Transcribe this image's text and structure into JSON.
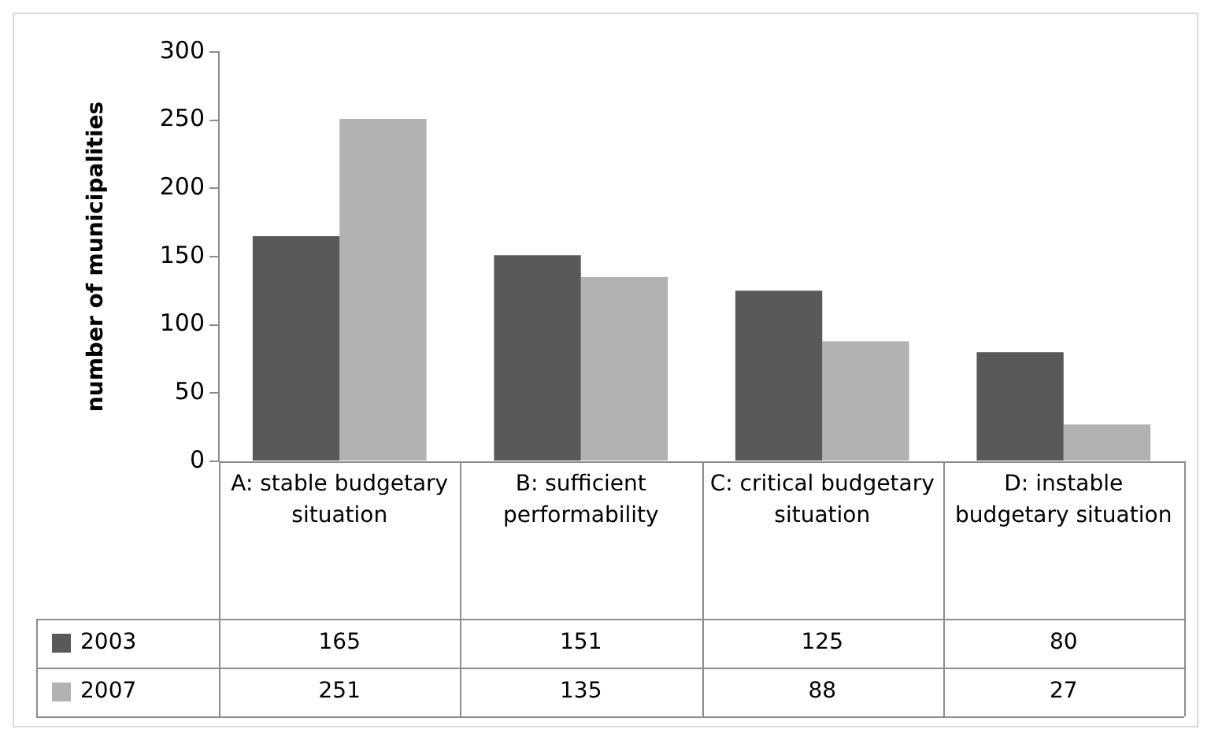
{
  "chart_data": {
    "type": "bar",
    "ylabel": "number of municipalities",
    "categories": [
      "A: stable budgetary situation",
      "B: sufficient performability",
      "C: critical budgetary situation",
      "D: instable budgetary situation"
    ],
    "series": [
      {
        "name": "2003",
        "color": "#595959",
        "values": [
          165,
          151,
          125,
          80
        ]
      },
      {
        "name": "2007",
        "color": "#b2b2b2",
        "values": [
          251,
          135,
          88,
          27
        ]
      }
    ],
    "ylim": [
      0,
      300
    ],
    "yticks": [
      0,
      50,
      100,
      150,
      200,
      250,
      300
    ],
    "data_labels": true,
    "legend": "bottom"
  }
}
